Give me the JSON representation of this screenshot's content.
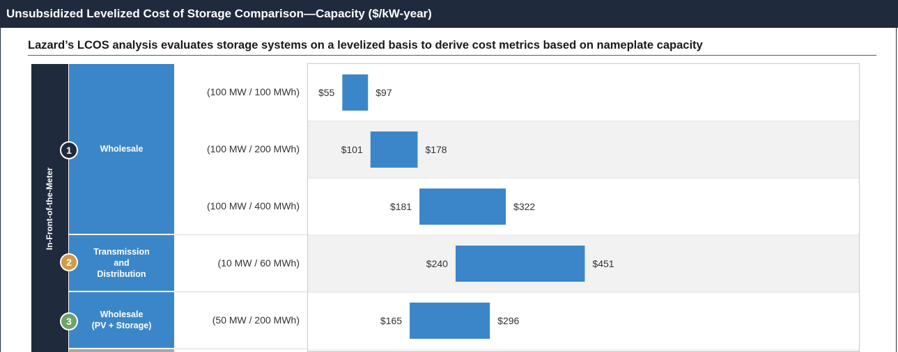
{
  "page": {
    "title": "Unsubsidized Levelized Cost of Storage Comparison—Capacity ($/kW-year)",
    "subtitle": "Lazard’s LCOS analysis evaluates storage systems on a levelized basis to derive cost metrics based on nameplate capacity",
    "side_label": "In-Front-of-the-Meter"
  },
  "groups": [
    {
      "number": "1",
      "label": "Wholesale",
      "circle_color": "#1f2a3c"
    },
    {
      "number": "2",
      "label": "Transmission\nand\nDistribution",
      "circle_color": "#d29b45"
    },
    {
      "number": "3",
      "label": "Wholesale\n(PV + Storage)",
      "circle_color": "#6fa36a"
    }
  ],
  "colors": {
    "bar": "#3b86c8",
    "header": "#1f2a3c",
    "band": "#f2f2f2"
  },
  "chart_data": {
    "type": "bar",
    "orientation": "horizontal-floating",
    "title": "Unsubsidized Levelized Cost of Storage Comparison—Capacity ($/kW-year)",
    "categories": [
      "(100 MW / 100 MWh)",
      "(100 MW / 200 MWh)",
      "(100 MW / 400 MWh)",
      "(10 MW / 60 MWh)",
      "(50 MW / 200 MWh)"
    ],
    "series": [
      {
        "low": [
          55,
          101,
          181,
          240,
          165
        ],
        "high": [
          97,
          178,
          322,
          451,
          296
        ],
        "low_labels": [
          "$55",
          "$101",
          "$181",
          "$240",
          "$165"
        ],
        "high_labels": [
          "$97",
          "$178",
          "$322",
          "$451",
          "$296"
        ]
      }
    ],
    "grid": false
  }
}
